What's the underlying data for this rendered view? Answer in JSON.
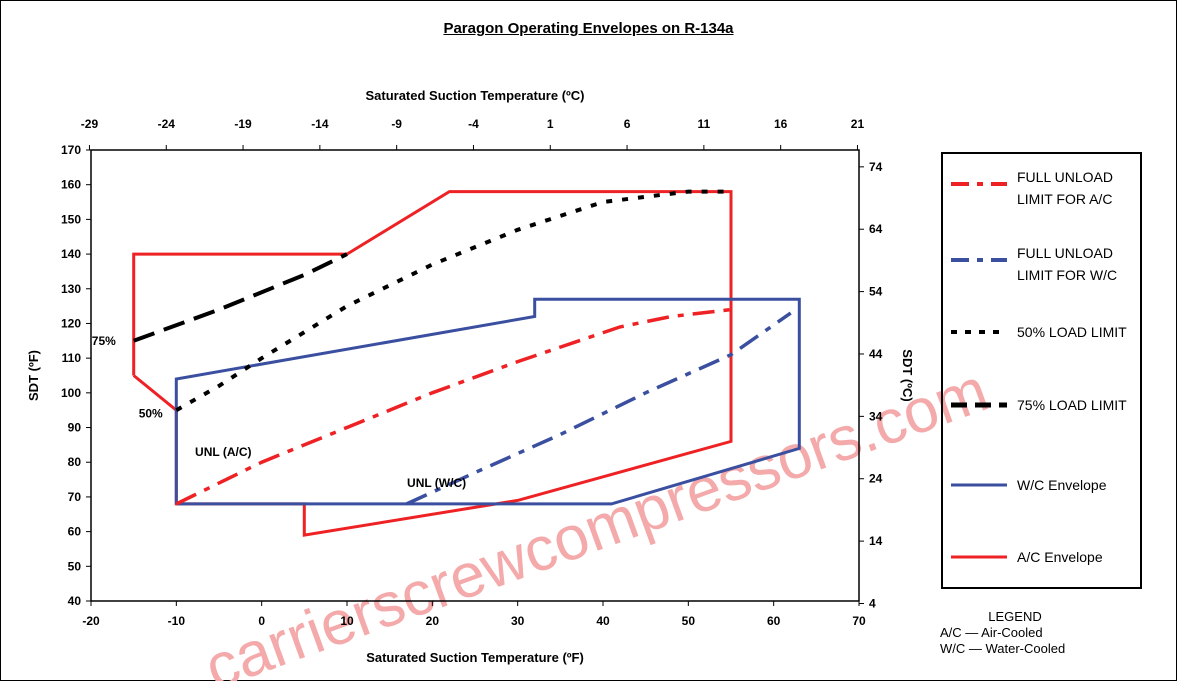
{
  "chart_data": {
    "type": "line",
    "title": "Paragon Operating Envelopes on R-134a",
    "xlabel": "Saturated Suction Temperature (ºF)",
    "x2label": "Saturated Suction Temperature (ºC)",
    "ylabel": "SDT (ºF)",
    "y2label": "SDT (ºC)",
    "xlim": [
      -20,
      70
    ],
    "ylim": [
      40,
      170
    ],
    "x2lim": [
      -28.9,
      21.1
    ],
    "y2lim": [
      4.4,
      76.7
    ],
    "x_ticks": [
      "-20",
      "-10",
      "0",
      "10",
      "20",
      "30",
      "40",
      "50",
      "60",
      "70"
    ],
    "y_ticks": [
      "40",
      "50",
      "60",
      "70",
      "80",
      "90",
      "100",
      "110",
      "120",
      "130",
      "140",
      "150",
      "160",
      "170"
    ],
    "x2_ticks": [
      {
        "value": -29,
        "label": "-29"
      },
      {
        "value": -24,
        "label": "-24"
      },
      {
        "value": -19,
        "label": "-19"
      },
      {
        "value": -14,
        "label": "-14"
      },
      {
        "value": -9,
        "label": "-9"
      },
      {
        "value": -4,
        "label": "-4"
      },
      {
        "value": 1,
        "label": "1"
      },
      {
        "value": 6,
        "label": "6"
      },
      {
        "value": 11,
        "label": "11"
      },
      {
        "value": 16,
        "label": "16"
      },
      {
        "value": 21,
        "label": "21"
      }
    ],
    "y2_ticks": [
      {
        "value": 4,
        "label": "4"
      },
      {
        "value": 14,
        "label": "14"
      },
      {
        "value": 24,
        "label": "24"
      },
      {
        "value": 34,
        "label": "34"
      },
      {
        "value": 44,
        "label": "44"
      },
      {
        "value": 54,
        "label": "54"
      },
      {
        "value": 64,
        "label": "64"
      },
      {
        "value": 74,
        "label": "74"
      }
    ],
    "grid": false,
    "legend_position": "right",
    "series": [
      {
        "name": "A/C Envelope",
        "color": "#ee2224",
        "style": "solid",
        "x": [
          -15,
          -15,
          10,
          22,
          55,
          55,
          30,
          5,
          5,
          -10,
          -10,
          -15
        ],
        "y": [
          105,
          140,
          140,
          158,
          158,
          86,
          69,
          59,
          68,
          68,
          95,
          105
        ]
      },
      {
        "name": "W/C Envelope",
        "color": "#3a4fa0",
        "style": "solid",
        "x": [
          -10,
          -10,
          32,
          32,
          63,
          63,
          41,
          -10
        ],
        "y": [
          68,
          104,
          122,
          127,
          127,
          84,
          68,
          68
        ]
      },
      {
        "name": "FULL UNLOAD LIMIT FOR A/C",
        "color": "#ee2224",
        "style": "dashdot",
        "x": [
          -10,
          0,
          10,
          20,
          30,
          42,
          48,
          55
        ],
        "y": [
          68,
          80,
          90,
          100,
          109,
          119,
          122,
          124
        ]
      },
      {
        "name": "FULL UNLOAD LIMIT FOR W/C",
        "color": "#3a4fa0",
        "style": "dashdot",
        "x": [
          17,
          25,
          35,
          45,
          55,
          62
        ],
        "y": [
          68,
          77,
          88,
          100,
          111,
          123
        ]
      },
      {
        "name": "50% LOAD LIMIT",
        "color": "#000000",
        "style": "dotted",
        "x": [
          -10,
          -5,
          0,
          10,
          20,
          30,
          40,
          50,
          55
        ],
        "y": [
          95,
          102,
          110,
          125,
          137,
          147,
          155,
          158,
          158
        ]
      },
      {
        "name": "75% LOAD LIMIT",
        "color": "#000000",
        "style": "dashed",
        "x": [
          -15,
          -5,
          5,
          10
        ],
        "y": [
          115,
          124,
          134,
          140
        ]
      }
    ],
    "annotations": [
      {
        "text": "75%",
        "x": -18.5,
        "y": 115
      },
      {
        "text": "50%",
        "x": -13,
        "y": 94
      },
      {
        "text": "UNL (A/C)",
        "x": -4.5,
        "y": 83
      },
      {
        "text": "UNL (W/C)",
        "x": 20.5,
        "y": 74
      }
    ],
    "bottom_legend": {
      "title": "LEGEND",
      "rows": [
        "A/C — Air-Cooled",
        "W/C — Water-Cooled"
      ]
    },
    "watermark": "carrierscrewcompressors.com"
  },
  "legend": [
    {
      "label": "FULL UNLOAD LIMIT FOR A/C",
      "color": "#ee2224",
      "style": "dashdot"
    },
    {
      "label": "FULL UNLOAD LIMIT FOR W/C",
      "color": "#3a4fa0",
      "style": "dashdot"
    },
    {
      "label": "50% LOAD LIMIT",
      "color": "#000000",
      "style": "dotted"
    },
    {
      "label": "75% LOAD LIMIT",
      "color": "#000000",
      "style": "dashed"
    },
    {
      "label": "W/C Envelope",
      "color": "#3a4fa0",
      "style": "solid"
    },
    {
      "label": "A/C Envelope",
      "color": "#ee2224",
      "style": "solid"
    }
  ]
}
